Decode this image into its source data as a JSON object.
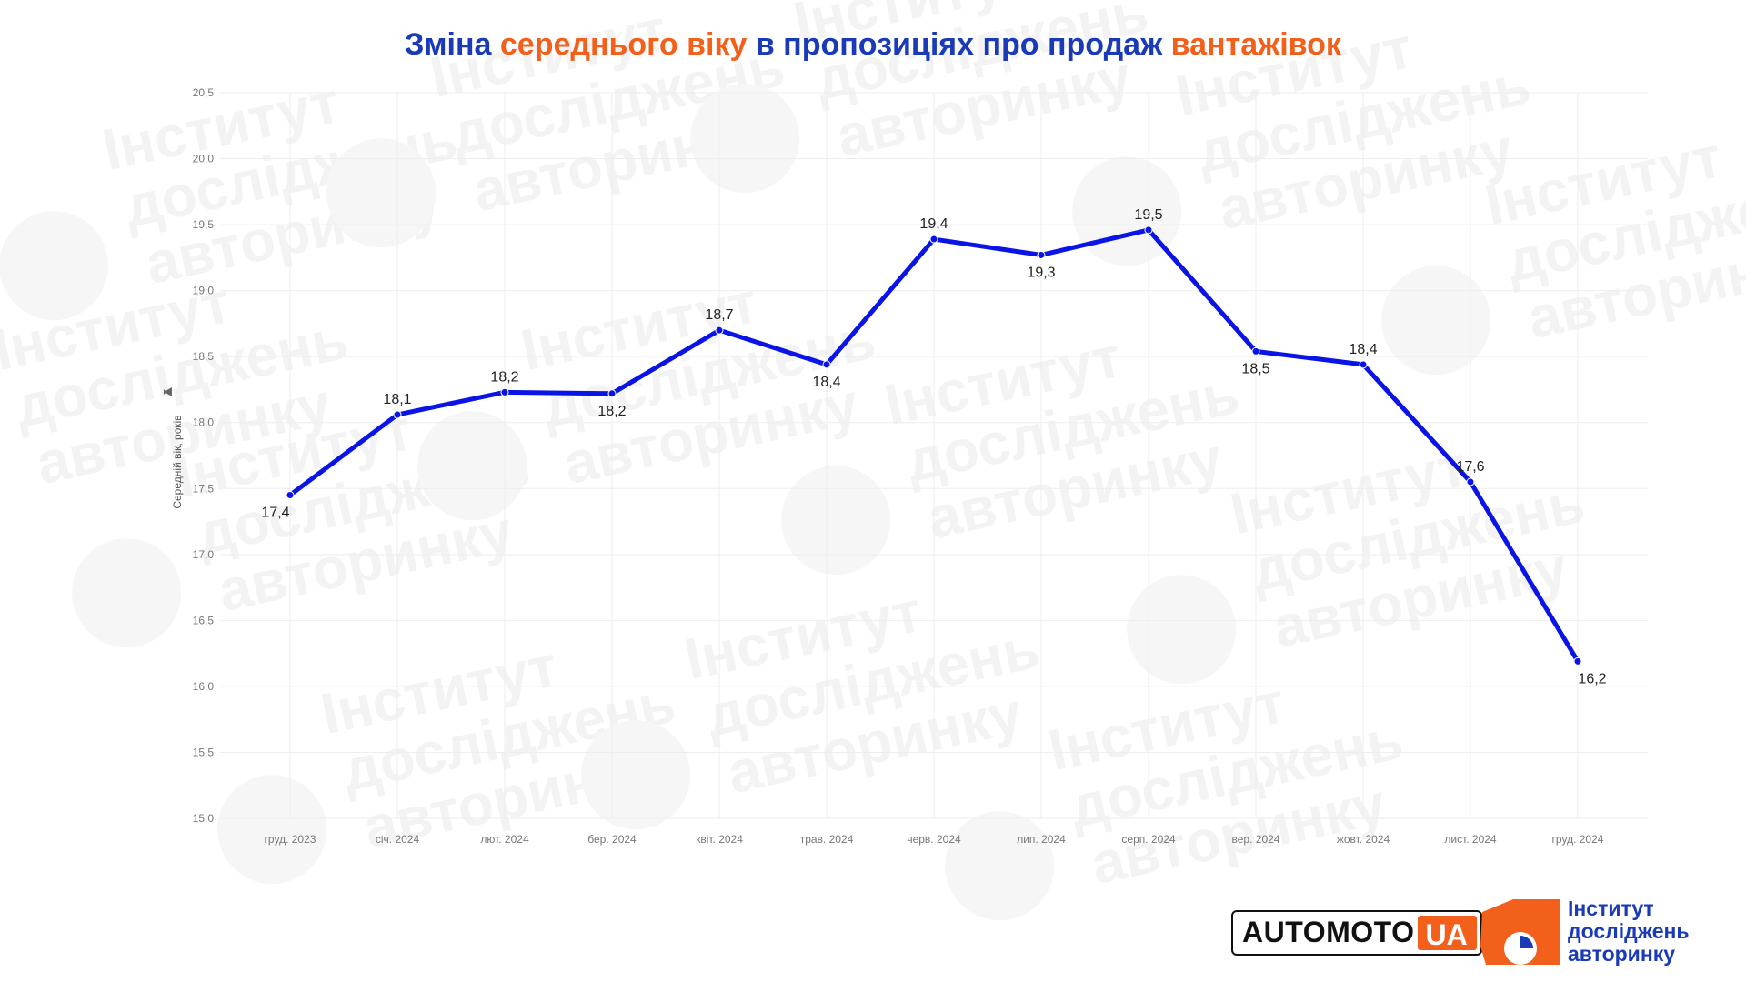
{
  "title": {
    "parts": [
      {
        "text": "Зміна ",
        "color": "#1a3ab8"
      },
      {
        "text": "середнього віку",
        "color": "#f2601c"
      },
      {
        "text": " в пропозиціях про продаж ",
        "color": "#1a3ab8"
      },
      {
        "text": "вантажівок",
        "color": "#f2601c"
      }
    ]
  },
  "watermark": {
    "lines": [
      "Інститут",
      "досліджень",
      "авторинку"
    ]
  },
  "logos": {
    "automoto_part1": "AUTOMOTO",
    "automoto_part2": "UA",
    "institute_lines": [
      "Інститут",
      "досліджень",
      "авторинку"
    ]
  },
  "colors": {
    "line": "#0a14e6",
    "title_blue": "#1a3ab8",
    "accent_orange": "#f2601c",
    "grid": "#eeeeee"
  },
  "chart_data": {
    "type": "line",
    "title": "Зміна середнього віку в пропозиціях про продаж вантажівок",
    "xlabel": "",
    "ylabel": "Середній вік, років",
    "ylim": [
      15.0,
      20.5
    ],
    "yticks": [
      15.0,
      15.5,
      16.0,
      16.5,
      17.0,
      17.5,
      18.0,
      18.5,
      19.0,
      19.5,
      20.0,
      20.5
    ],
    "ytick_labels": [
      "15,0",
      "15,5",
      "16,0",
      "16,5",
      "17,0",
      "17,5",
      "18,0",
      "18,5",
      "19,0",
      "19,5",
      "20,0",
      "20,5"
    ],
    "grid": true,
    "legend": "none",
    "categories": [
      "груд. 2023",
      "січ. 2024",
      "лют. 2024",
      "бер. 2024",
      "квіт. 2024",
      "трав. 2024",
      "черв. 2024",
      "лип. 2024",
      "серп. 2024",
      "вер. 2024",
      "жовт. 2024",
      "лист. 2024",
      "груд. 2024"
    ],
    "series": [
      {
        "values": [
          17.45,
          18.06,
          18.23,
          18.22,
          18.7,
          18.44,
          19.39,
          19.27,
          19.46,
          18.54,
          18.44,
          17.55,
          16.19
        ],
        "labels": [
          "17,4",
          "18,1",
          "18,2",
          "18,2",
          "18,7",
          "18,4",
          "19,4",
          "19,3",
          "19,5",
          "18,5",
          "18,4",
          "17,6",
          "16,2"
        ],
        "label_positions": [
          "below",
          "above",
          "above",
          "below",
          "above",
          "below",
          "above",
          "below",
          "above",
          "below",
          "above",
          "above",
          "below"
        ]
      }
    ]
  }
}
